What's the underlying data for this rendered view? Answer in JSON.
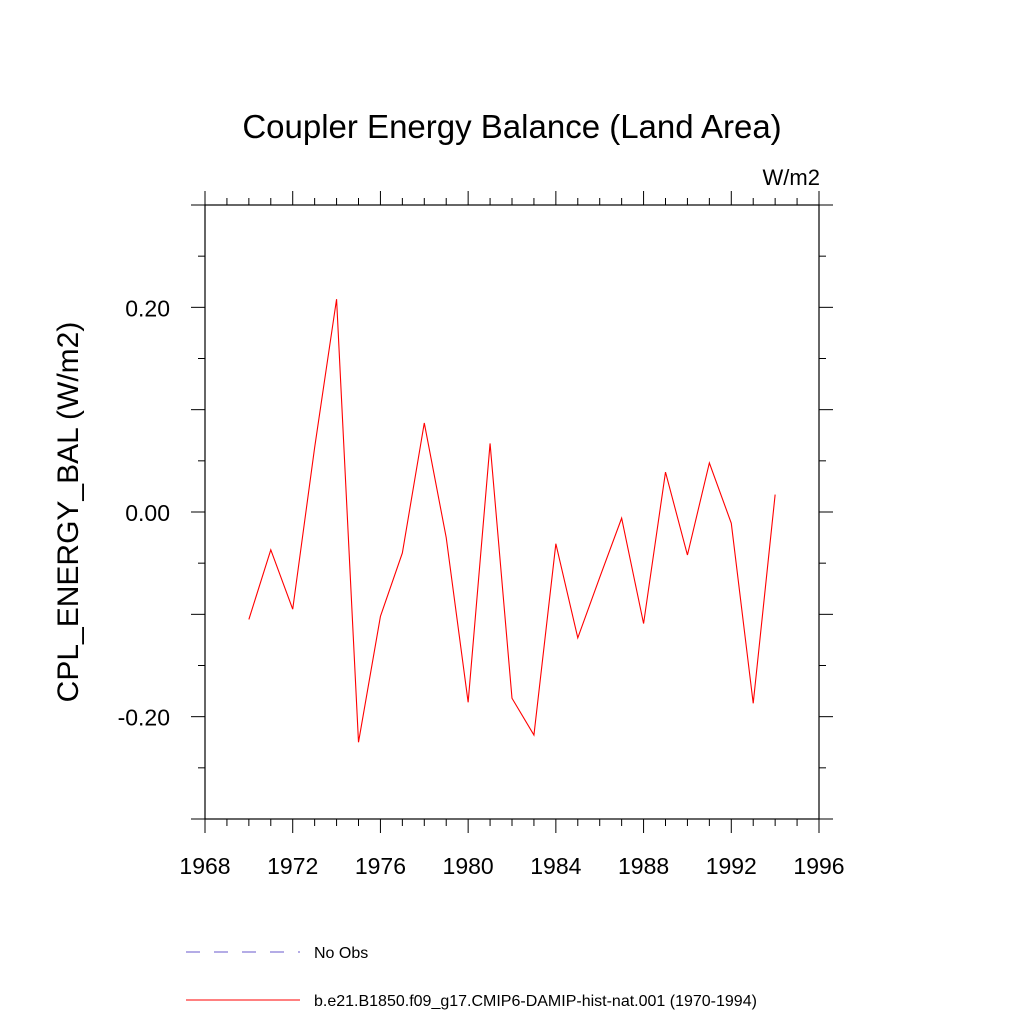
{
  "chart_data": {
    "type": "line",
    "title": "Coupler Energy Balance (Land Area)",
    "units_label": "W/m2",
    "xlabel": "",
    "ylabel": "CPL_ENERGY_BAL  (W/m2)",
    "xlim": [
      1968,
      1996
    ],
    "ylim": [
      -0.3,
      0.3
    ],
    "x_ticks": [
      1968,
      1972,
      1976,
      1980,
      1984,
      1988,
      1992,
      1996
    ],
    "x_tick_labels": [
      "1968",
      "1972",
      "1976",
      "1980",
      "1984",
      "1988",
      "1992",
      "1996"
    ],
    "y_ticks": [
      -0.2,
      0.0,
      0.2
    ],
    "y_tick_labels": [
      "-0.20",
      "0.00",
      "0.20"
    ],
    "grid": false,
    "legend_position": "bottom",
    "series": [
      {
        "name": "No Obs",
        "color": "#6a5acd",
        "dash": "dashed",
        "x": [],
        "y": []
      },
      {
        "name": "b.e21.B1850.f09_g17.CMIP6-DAMIP-hist-nat.001 (1970-1994)",
        "color": "#ff0000",
        "dash": "solid",
        "x": [
          1970,
          1971,
          1972,
          1973,
          1974,
          1975,
          1976,
          1977,
          1978,
          1979,
          1980,
          1981,
          1982,
          1983,
          1984,
          1985,
          1986,
          1987,
          1988,
          1989,
          1990,
          1991,
          1992,
          1993,
          1994
        ],
        "y": [
          -0.105,
          -0.037,
          -0.095,
          0.063,
          0.208,
          -0.225,
          -0.102,
          -0.04,
          0.087,
          -0.025,
          -0.186,
          0.067,
          -0.182,
          -0.218,
          -0.031,
          -0.123,
          -0.064,
          -0.006,
          -0.109,
          0.039,
          -0.042,
          0.048,
          -0.011,
          -0.187,
          0.017
        ]
      }
    ]
  }
}
